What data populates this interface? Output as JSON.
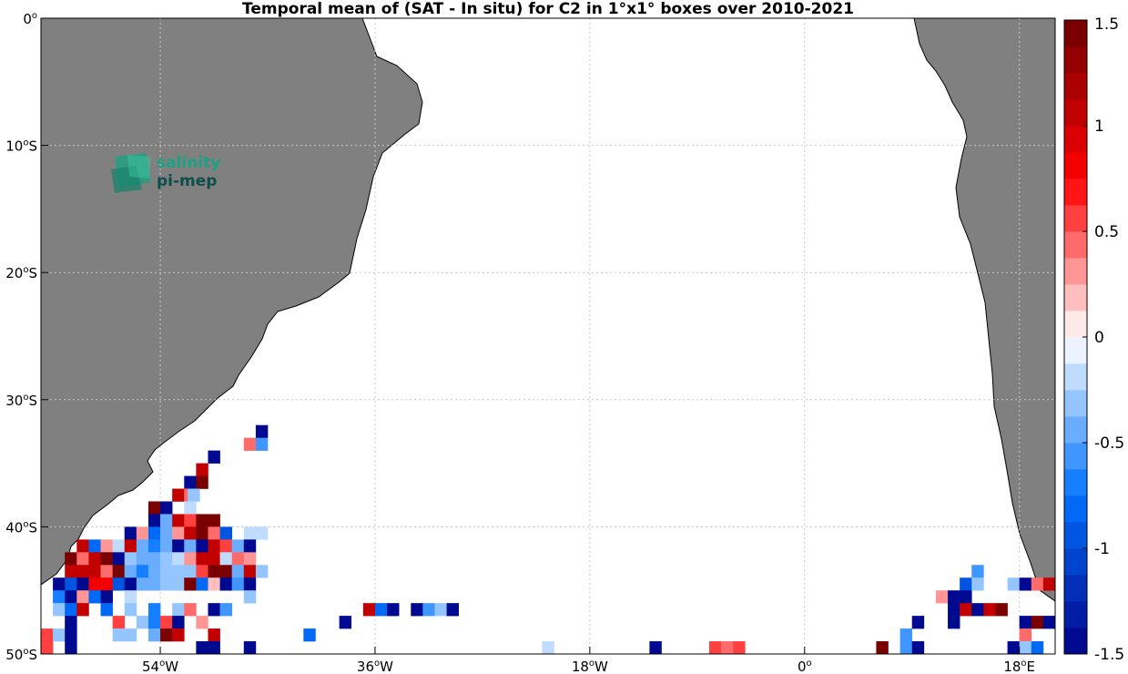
{
  "chart_data": {
    "type": "heatmap",
    "title": "Temporal mean of (SAT - In situ) for C2 in 1°x1° boxes over 2010-2021",
    "xlabel": "",
    "ylabel": "",
    "xlim": [
      -64,
      21
    ],
    "ylim": [
      -50,
      0
    ],
    "grid": true,
    "x_ticks": [
      {
        "value": -54,
        "deg": "54",
        "suffix": "W"
      },
      {
        "value": -36,
        "deg": "36",
        "suffix": "W"
      },
      {
        "value": -18,
        "deg": "18",
        "suffix": "W"
      },
      {
        "value": 0,
        "deg": "0",
        "suffix": ""
      },
      {
        "value": 18,
        "deg": "18",
        "suffix": "E"
      }
    ],
    "y_ticks": [
      {
        "value": 0,
        "deg": "0",
        "suffix": ""
      },
      {
        "value": -10,
        "deg": "10",
        "suffix": "S"
      },
      {
        "value": -20,
        "deg": "20",
        "suffix": "S"
      },
      {
        "value": -30,
        "deg": "30",
        "suffix": "S"
      },
      {
        "value": -40,
        "deg": "40",
        "suffix": "S"
      },
      {
        "value": -50,
        "deg": "50",
        "suffix": "S"
      }
    ],
    "colorbar": {
      "min": -1.5,
      "max": 1.5,
      "ticks": [
        {
          "value": 1.5,
          "label": "1.5"
        },
        {
          "value": 1,
          "label": "1"
        },
        {
          "value": 0.5,
          "label": "0.5"
        },
        {
          "value": 0,
          "label": "0"
        },
        {
          "value": -0.5,
          "label": "-0.5"
        },
        {
          "value": -1,
          "label": "-1"
        },
        {
          "value": -1.5,
          "label": "-1.5"
        }
      ]
    },
    "cells": [
      {
        "lon": -46,
        "lat": -32,
        "v": -1.5
      },
      {
        "lon": -47,
        "lat": -33,
        "v": 0.4
      },
      {
        "lon": -46,
        "lat": -33,
        "v": -0.6
      },
      {
        "lon": -50,
        "lat": -34,
        "v": -1.5
      },
      {
        "lon": -51,
        "lat": -35,
        "v": 1.0
      },
      {
        "lon": -52,
        "lat": -36,
        "v": -1.5
      },
      {
        "lon": -51,
        "lat": -36,
        "v": 1.5
      },
      {
        "lon": -53,
        "lat": -37,
        "v": 1.0
      },
      {
        "lon": -52,
        "lat": -37,
        "v": 0.4
      },
      {
        "lon": -51.7,
        "lat": -37,
        "v": -0.3
      },
      {
        "lon": -55,
        "lat": -38,
        "v": 1.5
      },
      {
        "lon": -54,
        "lat": -38,
        "v": -1.5
      },
      {
        "lon": -52,
        "lat": -38,
        "v": -0.2
      },
      {
        "lon": -55,
        "lat": -39,
        "v": -1.5
      },
      {
        "lon": -54,
        "lat": -39,
        "v": -0.4
      },
      {
        "lon": -53,
        "lat": -39,
        "v": 1.0
      },
      {
        "lon": -52,
        "lat": -39,
        "v": 0.5
      },
      {
        "lon": -51,
        "lat": -39,
        "v": 1.5
      },
      {
        "lon": -50,
        "lat": -39,
        "v": 1.5
      },
      {
        "lon": -57,
        "lat": -40,
        "v": -1.5
      },
      {
        "lon": -56,
        "lat": -40,
        "v": 0.3
      },
      {
        "lon": -55,
        "lat": -40,
        "v": -0.8
      },
      {
        "lon": -54,
        "lat": -40,
        "v": -0.5
      },
      {
        "lon": -53,
        "lat": -40,
        "v": 0.3
      },
      {
        "lon": -52,
        "lat": -40,
        "v": 1.0
      },
      {
        "lon": -51,
        "lat": -40,
        "v": 1.5
      },
      {
        "lon": -50,
        "lat": -40,
        "v": 0.4
      },
      {
        "lon": -49,
        "lat": -40,
        "v": -0.9
      },
      {
        "lon": -47,
        "lat": -40,
        "v": -0.15
      },
      {
        "lon": -46,
        "lat": -40,
        "v": -0.15
      },
      {
        "lon": -61,
        "lat": -41,
        "v": 1.0
      },
      {
        "lon": -60,
        "lat": -41,
        "v": -0.8
      },
      {
        "lon": -59,
        "lat": -41,
        "v": 0.3
      },
      {
        "lon": -58,
        "lat": -41,
        "v": -0.2
      },
      {
        "lon": -57,
        "lat": -41,
        "v": 1.0
      },
      {
        "lon": -56,
        "lat": -41,
        "v": -0.4
      },
      {
        "lon": -55,
        "lat": -41,
        "v": -0.7
      },
      {
        "lon": -54,
        "lat": -41,
        "v": -0.5
      },
      {
        "lon": -53,
        "lat": -41,
        "v": -1.5
      },
      {
        "lon": -52,
        "lat": -41,
        "v": -0.4
      },
      {
        "lon": -51,
        "lat": -41,
        "v": -1.5
      },
      {
        "lon": -50,
        "lat": -41,
        "v": 1.0
      },
      {
        "lon": -49,
        "lat": -41,
        "v": 0.5
      },
      {
        "lon": -48,
        "lat": -41,
        "v": -0.4
      },
      {
        "lon": -47,
        "lat": -41,
        "v": -1.5
      },
      {
        "lon": -62,
        "lat": -42,
        "v": 1.5
      },
      {
        "lon": -61,
        "lat": -42,
        "v": 0.4
      },
      {
        "lon": -60,
        "lat": -42,
        "v": 1.0
      },
      {
        "lon": -59,
        "lat": -42,
        "v": 1.5
      },
      {
        "lon": -58,
        "lat": -42,
        "v": -1.5
      },
      {
        "lon": -57,
        "lat": -42,
        "v": -0.3
      },
      {
        "lon": -56,
        "lat": -42,
        "v": -0.5
      },
      {
        "lon": -55,
        "lat": -42,
        "v": -0.5
      },
      {
        "lon": -54,
        "lat": -42,
        "v": -0.3
      },
      {
        "lon": -53,
        "lat": -42,
        "v": -0.2
      },
      {
        "lon": -52,
        "lat": -42,
        "v": 0.3
      },
      {
        "lon": -51,
        "lat": -42,
        "v": 1.0
      },
      {
        "lon": -50,
        "lat": -42,
        "v": 1.0
      },
      {
        "lon": -49,
        "lat": -42,
        "v": -0.2
      },
      {
        "lon": -48,
        "lat": -42,
        "v": 0.4
      },
      {
        "lon": -47,
        "lat": -42,
        "v": 0.3
      },
      {
        "lon": -62,
        "lat": -43,
        "v": 1.0
      },
      {
        "lon": -61,
        "lat": -43,
        "v": 1.0
      },
      {
        "lon": -60,
        "lat": -43,
        "v": 1.0
      },
      {
        "lon": -59,
        "lat": -43,
        "v": 0.4
      },
      {
        "lon": -58,
        "lat": -43,
        "v": 1.5
      },
      {
        "lon": -57,
        "lat": -43,
        "v": -0.5
      },
      {
        "lon": -56,
        "lat": -43,
        "v": -0.7
      },
      {
        "lon": -55,
        "lat": -43,
        "v": -0.4
      },
      {
        "lon": -54,
        "lat": -43,
        "v": -0.3
      },
      {
        "lon": -53,
        "lat": -43,
        "v": -0.3
      },
      {
        "lon": -52,
        "lat": -43,
        "v": -0.3
      },
      {
        "lon": -51,
        "lat": -43,
        "v": 0.5
      },
      {
        "lon": -50,
        "lat": -43,
        "v": 1.5
      },
      {
        "lon": -49,
        "lat": -43,
        "v": 1.5
      },
      {
        "lon": -48,
        "lat": -43,
        "v": -0.4
      },
      {
        "lon": -47,
        "lat": -43,
        "v": 1.0
      },
      {
        "lon": -46,
        "lat": -43,
        "v": -0.3
      },
      {
        "lon": -63,
        "lat": -44,
        "v": -1.5
      },
      {
        "lon": -62,
        "lat": -44,
        "v": -0.9
      },
      {
        "lon": -61,
        "lat": -44,
        "v": -1.5
      },
      {
        "lon": -60,
        "lat": -44,
        "v": 0.8
      },
      {
        "lon": -59,
        "lat": -44,
        "v": 0.8
      },
      {
        "lon": -58,
        "lat": -44,
        "v": -0.9
      },
      {
        "lon": -57,
        "lat": -44,
        "v": -1.5
      },
      {
        "lon": -56,
        "lat": -44,
        "v": -0.5
      },
      {
        "lon": -55,
        "lat": -44,
        "v": -0.4
      },
      {
        "lon": -54,
        "lat": -44,
        "v": -0.3
      },
      {
        "lon": -53,
        "lat": -44,
        "v": -0.3
      },
      {
        "lon": -52,
        "lat": -44,
        "v": 1.5
      },
      {
        "lon": -51,
        "lat": -44,
        "v": -0.8
      },
      {
        "lon": -50,
        "lat": -44,
        "v": 0.2
      },
      {
        "lon": -49,
        "lat": -44,
        "v": -1.5
      },
      {
        "lon": -48,
        "lat": -44,
        "v": -0.6
      },
      {
        "lon": -47,
        "lat": -44,
        "v": -1.5
      },
      {
        "lon": -63,
        "lat": -45,
        "v": -0.7
      },
      {
        "lon": -62,
        "lat": -45,
        "v": -1.5
      },
      {
        "lon": -61,
        "lat": -45,
        "v": 0.3
      },
      {
        "lon": -60,
        "lat": -45,
        "v": -0.8
      },
      {
        "lon": -59,
        "lat": -45,
        "v": -1.5
      },
      {
        "lon": -57,
        "lat": -45,
        "v": -0.2
      },
      {
        "lon": -47,
        "lat": -45,
        "v": -0.3
      },
      {
        "lon": -63,
        "lat": -46,
        "v": -0.3
      },
      {
        "lon": -62,
        "lat": -46,
        "v": -0.8
      },
      {
        "lon": -61,
        "lat": -46,
        "v": 1.0
      },
      {
        "lon": -59,
        "lat": -46,
        "v": -0.8
      },
      {
        "lon": -57,
        "lat": -46,
        "v": -0.3
      },
      {
        "lon": -55,
        "lat": -46,
        "v": -0.7
      },
      {
        "lon": -53,
        "lat": -46,
        "v": -0.3
      },
      {
        "lon": -52,
        "lat": -46,
        "v": 0.4
      },
      {
        "lon": -50,
        "lat": -46,
        "v": -1.5
      },
      {
        "lon": -49,
        "lat": -46,
        "v": -0.6
      },
      {
        "lon": -62,
        "lat": -47,
        "v": -1.5
      },
      {
        "lon": -58,
        "lat": -47,
        "v": 0.5
      },
      {
        "lon": -56,
        "lat": -47,
        "v": -0.3
      },
      {
        "lon": -55,
        "lat": -47,
        "v": -0.7
      },
      {
        "lon": -54,
        "lat": -47,
        "v": 0.5
      },
      {
        "lon": -53,
        "lat": -47,
        "v": -1.5
      },
      {
        "lon": -51,
        "lat": -47,
        "v": 0.3
      },
      {
        "lon": -64,
        "lat": -48,
        "v": 0.6
      },
      {
        "lon": -63,
        "lat": -48,
        "v": -0.3
      },
      {
        "lon": -62,
        "lat": -48,
        "v": -1.5
      },
      {
        "lon": -58,
        "lat": -48,
        "v": -0.3
      },
      {
        "lon": -57,
        "lat": -48,
        "v": -0.3
      },
      {
        "lon": -55,
        "lat": -48,
        "v": -0.4
      },
      {
        "lon": -54,
        "lat": -48,
        "v": 1.5
      },
      {
        "lon": -53,
        "lat": -48,
        "v": 1.0
      },
      {
        "lon": -50,
        "lat": -48,
        "v": 1.0
      },
      {
        "lon": -64,
        "lat": -49,
        "v": 0.6
      },
      {
        "lon": -62,
        "lat": -49,
        "v": -1.5
      },
      {
        "lon": -51,
        "lat": -49,
        "v": -1.5
      },
      {
        "lon": -50,
        "lat": -49,
        "v": -1.5
      },
      {
        "lon": -47,
        "lat": -49,
        "v": -1.5
      },
      {
        "lon": -37,
        "lat": -46,
        "v": 1.0
      },
      {
        "lon": -36,
        "lat": -46,
        "v": -0.8
      },
      {
        "lon": -35,
        "lat": -46,
        "v": -1.5
      },
      {
        "lon": -33,
        "lat": -46,
        "v": -1.5
      },
      {
        "lon": -32,
        "lat": -46,
        "v": -0.6
      },
      {
        "lon": -31,
        "lat": -46,
        "v": -0.3
      },
      {
        "lon": -30,
        "lat": -46,
        "v": -1.5
      },
      {
        "lon": -39,
        "lat": -47,
        "v": -1.5
      },
      {
        "lon": -42,
        "lat": -48,
        "v": -0.8
      },
      {
        "lon": -22,
        "lat": -49,
        "v": -0.15
      },
      {
        "lon": -13,
        "lat": -49,
        "v": -1.5
      },
      {
        "lon": -8,
        "lat": -49,
        "v": 0.5
      },
      {
        "lon": -7,
        "lat": -49,
        "v": 0.4
      },
      {
        "lon": -6,
        "lat": -49,
        "v": 0.5
      },
      {
        "lon": 6,
        "lat": -49,
        "v": 1.5
      },
      {
        "lon": 8,
        "lat": -48,
        "v": -0.6
      },
      {
        "lon": 8,
        "lat": -49,
        "v": -0.6
      },
      {
        "lon": 9,
        "lat": -47,
        "v": -1.5
      },
      {
        "lon": 9,
        "lat": -49,
        "v": -1.5
      },
      {
        "lon": 11,
        "lat": -45,
        "v": 0.3
      },
      {
        "lon": 12,
        "lat": -45,
        "v": -1.5
      },
      {
        "lon": 12,
        "lat": -46,
        "v": -1.5
      },
      {
        "lon": 12,
        "lat": -47,
        "v": -1.5
      },
      {
        "lon": 13,
        "lat": -44,
        "v": -0.9
      },
      {
        "lon": 13,
        "lat": -45,
        "v": -1.5
      },
      {
        "lon": 13,
        "lat": -46,
        "v": 1.0
      },
      {
        "lon": 14,
        "lat": -43,
        "v": -0.6
      },
      {
        "lon": 14,
        "lat": -44,
        "v": -0.3
      },
      {
        "lon": 14,
        "lat": -46,
        "v": -1.5
      },
      {
        "lon": 15,
        "lat": -46,
        "v": 1.0
      },
      {
        "lon": 16,
        "lat": -46,
        "v": 1.5
      },
      {
        "lon": 17,
        "lat": -44,
        "v": -0.3
      },
      {
        "lon": 18,
        "lat": -44,
        "v": -1.5
      },
      {
        "lon": 19,
        "lat": -44,
        "v": 0.4
      },
      {
        "lon": 20,
        "lat": -44,
        "v": 1.0
      },
      {
        "lon": 18,
        "lat": -47,
        "v": -1.5
      },
      {
        "lon": 19,
        "lat": -47,
        "v": 1.5
      },
      {
        "lon": 20,
        "lat": -47,
        "v": -1.5
      },
      {
        "lon": 18,
        "lat": -48,
        "v": 0.4
      },
      {
        "lon": 17,
        "lat": -49,
        "v": -1.5
      },
      {
        "lon": 18,
        "lat": -49,
        "v": -0.3
      },
      {
        "lon": 19,
        "lat": -49,
        "v": -0.8
      }
    ]
  },
  "logo": {
    "line1": "salinity",
    "line2": "pi-mep"
  },
  "colors": {
    "land": "#808080",
    "background": "#ffffff",
    "grid": "#c8c8c8",
    "logo_teal": "#1aa383",
    "logo_dark": "#0d4d4a"
  }
}
